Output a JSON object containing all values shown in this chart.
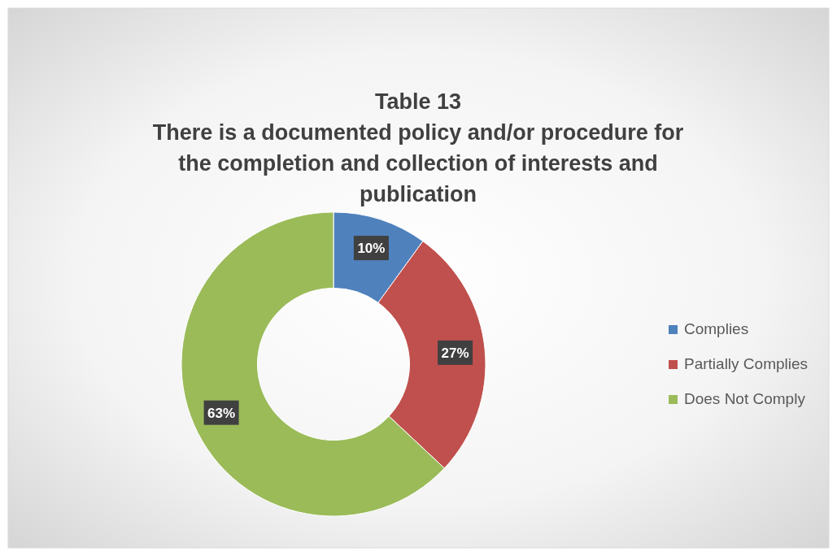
{
  "chart_data": {
    "type": "donut",
    "title": "Table 13",
    "subtitle": "There is a documented policy and/or procedure for the completion and collection of interests and publication",
    "categories": [
      "Complies",
      "Partially Complies",
      "Does Not Comply"
    ],
    "values": [
      10,
      27,
      63
    ],
    "colors": [
      "#4f81bd",
      "#c0504d",
      "#9bbb59"
    ],
    "value_labels": [
      "10%",
      "27%",
      "63%"
    ],
    "legend": "right"
  }
}
